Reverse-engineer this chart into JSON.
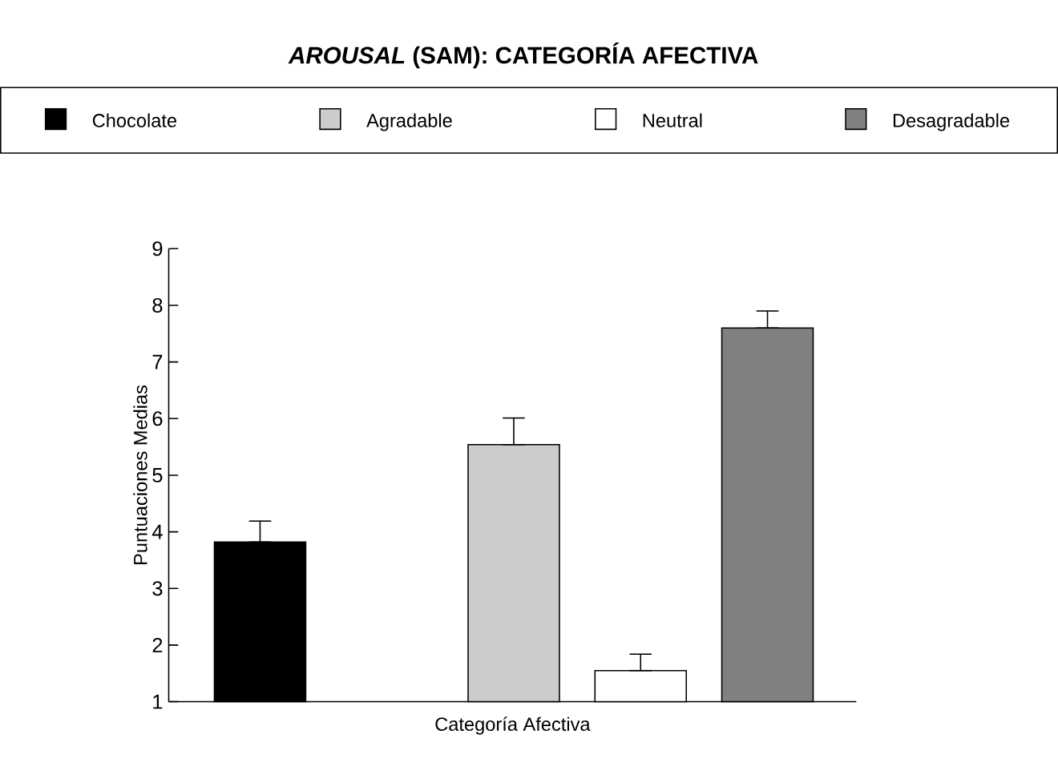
{
  "chart_data": {
    "type": "bar",
    "title": "*AROUSAL* (SAM): CATEGORÍA AFECTIVA",
    "xlabel": "Categoría Afectiva",
    "ylabel": "Puntuaciones Medias",
    "categories": [
      null,
      null,
      null,
      null,
      null
    ],
    "series": [
      {
        "name": "Chocolate",
        "color": "#000000",
        "values": [
          3.82,
          null,
          null,
          null,
          null
        ],
        "errors": [
          [
            3.82,
            4.19
          ],
          null,
          null,
          null,
          null
        ]
      },
      {
        "name": "Agradable",
        "color": "#cccccc",
        "values": [
          null,
          null,
          5.54,
          null,
          null
        ],
        "errors": [
          null,
          null,
          [
            5.54,
            6.01
          ],
          null,
          null
        ]
      },
      {
        "name": "Neutral",
        "color": "#ffffff",
        "values": [
          null,
          null,
          null,
          1.55,
          null
        ],
        "errors": [
          null,
          null,
          null,
          [
            1.55,
            1.84
          ],
          null
        ]
      },
      {
        "name": "Desagradable",
        "color": "#808080",
        "values": [
          null,
          null,
          null,
          null,
          7.6
        ],
        "errors": [
          null,
          null,
          null,
          null,
          [
            7.6,
            7.9
          ]
        ]
      }
    ],
    "ylim": [
      1,
      9
    ],
    "yticks": [
      1,
      2,
      3,
      4,
      5,
      6,
      7,
      8,
      9
    ],
    "tick_labels": "y",
    "legend": "top",
    "grid": false
  }
}
